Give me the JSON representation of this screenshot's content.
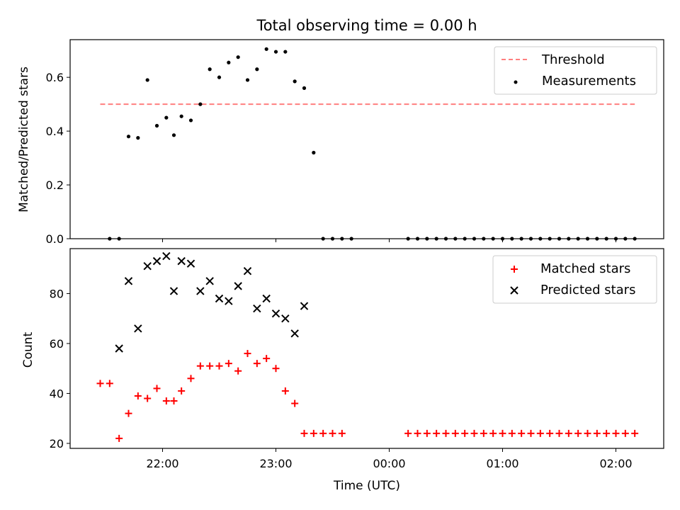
{
  "chart_data": [
    {
      "type": "scatter",
      "title": "Total observing time = 0.00 h",
      "ylabel": "Matched/Predicted stars",
      "xlabel": "",
      "x_ticks": [
        "22:00",
        "23:00",
        "00:00",
        "01:00",
        "02:00"
      ],
      "x_tick_labels_visible": false,
      "ylim": [
        0,
        0.74
      ],
      "y_ticks": [
        "0.0",
        "0.2",
        "0.4",
        "0.6"
      ],
      "legend_position": "top-right",
      "threshold": {
        "name": "Threshold",
        "value": 0.5,
        "x_range": [
          "21:27",
          "02:10"
        ],
        "color": "#ff7f7f",
        "style": "dashed"
      },
      "series": [
        {
          "name": "Measurements",
          "color": "#000000",
          "marker": "dot",
          "points": [
            [
              "21:32",
              0.0
            ],
            [
              "21:37",
              0.0
            ],
            [
              "21:42",
              0.38
            ],
            [
              "21:47",
              0.375
            ],
            [
              "21:52",
              0.59
            ],
            [
              "21:57",
              0.42
            ],
            [
              "22:02",
              0.45
            ],
            [
              "22:06",
              0.385
            ],
            [
              "22:10",
              0.455
            ],
            [
              "22:15",
              0.44
            ],
            [
              "22:20",
              0.5
            ],
            [
              "22:25",
              0.63
            ],
            [
              "22:30",
              0.6
            ],
            [
              "22:35",
              0.655
            ],
            [
              "22:40",
              0.675
            ],
            [
              "22:45",
              0.59
            ],
            [
              "22:50",
              0.63
            ],
            [
              "22:55",
              0.705
            ],
            [
              "23:00",
              0.695
            ],
            [
              "23:05",
              0.695
            ],
            [
              "23:10",
              0.585
            ],
            [
              "23:15",
              0.56
            ],
            [
              "23:20",
              0.32
            ],
            [
              "23:25",
              0.0
            ],
            [
              "23:30",
              0.0
            ],
            [
              "23:35",
              0.0
            ],
            [
              "23:40",
              0.0
            ],
            [
              "00:10",
              0.0
            ],
            [
              "00:15",
              0.0
            ],
            [
              "00:20",
              0.0
            ],
            [
              "00:25",
              0.0
            ],
            [
              "00:30",
              0.0
            ],
            [
              "00:35",
              0.0
            ],
            [
              "00:40",
              0.0
            ],
            [
              "00:45",
              0.0
            ],
            [
              "00:50",
              0.0
            ],
            [
              "00:55",
              0.0
            ],
            [
              "01:00",
              0.0
            ],
            [
              "01:05",
              0.0
            ],
            [
              "01:10",
              0.0
            ],
            [
              "01:15",
              0.0
            ],
            [
              "01:20",
              0.0
            ],
            [
              "01:25",
              0.0
            ],
            [
              "01:30",
              0.0
            ],
            [
              "01:35",
              0.0
            ],
            [
              "01:40",
              0.0
            ],
            [
              "01:45",
              0.0
            ],
            [
              "01:50",
              0.0
            ],
            [
              "01:55",
              0.0
            ],
            [
              "02:00",
              0.0
            ],
            [
              "02:05",
              0.0
            ],
            [
              "02:10",
              0.0
            ]
          ]
        }
      ]
    },
    {
      "type": "scatter",
      "title": "",
      "xlabel": "Time (UTC)",
      "ylabel": "Count",
      "x_ticks": [
        "22:00",
        "23:00",
        "00:00",
        "01:00",
        "02:00"
      ],
      "ylim": [
        18,
        98
      ],
      "y_ticks": [
        "20",
        "40",
        "60",
        "80"
      ],
      "legend_position": "top-right",
      "series": [
        {
          "name": "Matched stars",
          "color": "#ff0000",
          "marker": "plus",
          "points": [
            [
              "21:27",
              44
            ],
            [
              "21:32",
              44
            ],
            [
              "21:37",
              22
            ],
            [
              "21:42",
              32
            ],
            [
              "21:47",
              39
            ],
            [
              "21:52",
              38
            ],
            [
              "21:57",
              42
            ],
            [
              "22:02",
              37
            ],
            [
              "22:06",
              37
            ],
            [
              "22:10",
              41
            ],
            [
              "22:15",
              46
            ],
            [
              "22:20",
              51
            ],
            [
              "22:25",
              51
            ],
            [
              "22:30",
              51
            ],
            [
              "22:35",
              52
            ],
            [
              "22:40",
              49
            ],
            [
              "22:45",
              56
            ],
            [
              "22:50",
              52
            ],
            [
              "22:55",
              54
            ],
            [
              "23:00",
              50
            ],
            [
              "23:05",
              41
            ],
            [
              "23:10",
              36
            ],
            [
              "23:15",
              24
            ],
            [
              "23:20",
              24
            ],
            [
              "23:25",
              24
            ],
            [
              "23:30",
              24
            ],
            [
              "23:35",
              24
            ],
            [
              "00:10",
              24
            ],
            [
              "00:15",
              24
            ],
            [
              "00:20",
              24
            ],
            [
              "00:25",
              24
            ],
            [
              "00:30",
              24
            ],
            [
              "00:35",
              24
            ],
            [
              "00:40",
              24
            ],
            [
              "00:45",
              24
            ],
            [
              "00:50",
              24
            ],
            [
              "00:55",
              24
            ],
            [
              "01:00",
              24
            ],
            [
              "01:05",
              24
            ],
            [
              "01:10",
              24
            ],
            [
              "01:15",
              24
            ],
            [
              "01:20",
              24
            ],
            [
              "01:25",
              24
            ],
            [
              "01:30",
              24
            ],
            [
              "01:35",
              24
            ],
            [
              "01:40",
              24
            ],
            [
              "01:45",
              24
            ],
            [
              "01:50",
              24
            ],
            [
              "01:55",
              24
            ],
            [
              "02:00",
              24
            ],
            [
              "02:05",
              24
            ],
            [
              "02:10",
              24
            ]
          ]
        },
        {
          "name": "Predicted stars",
          "color": "#000000",
          "marker": "x",
          "points": [
            [
              "21:37",
              58
            ],
            [
              "21:42",
              85
            ],
            [
              "21:47",
              66
            ],
            [
              "21:52",
              91
            ],
            [
              "21:57",
              93
            ],
            [
              "22:02",
              95
            ],
            [
              "22:06",
              81
            ],
            [
              "22:10",
              93
            ],
            [
              "22:15",
              92
            ],
            [
              "22:20",
              81
            ],
            [
              "22:25",
              85
            ],
            [
              "22:30",
              78
            ],
            [
              "22:35",
              77
            ],
            [
              "22:40",
              83
            ],
            [
              "22:45",
              89
            ],
            [
              "22:50",
              74
            ],
            [
              "22:55",
              78
            ],
            [
              "23:00",
              72
            ],
            [
              "23:05",
              70
            ],
            [
              "23:10",
              64
            ],
            [
              "23:15",
              75
            ]
          ]
        }
      ]
    }
  ]
}
